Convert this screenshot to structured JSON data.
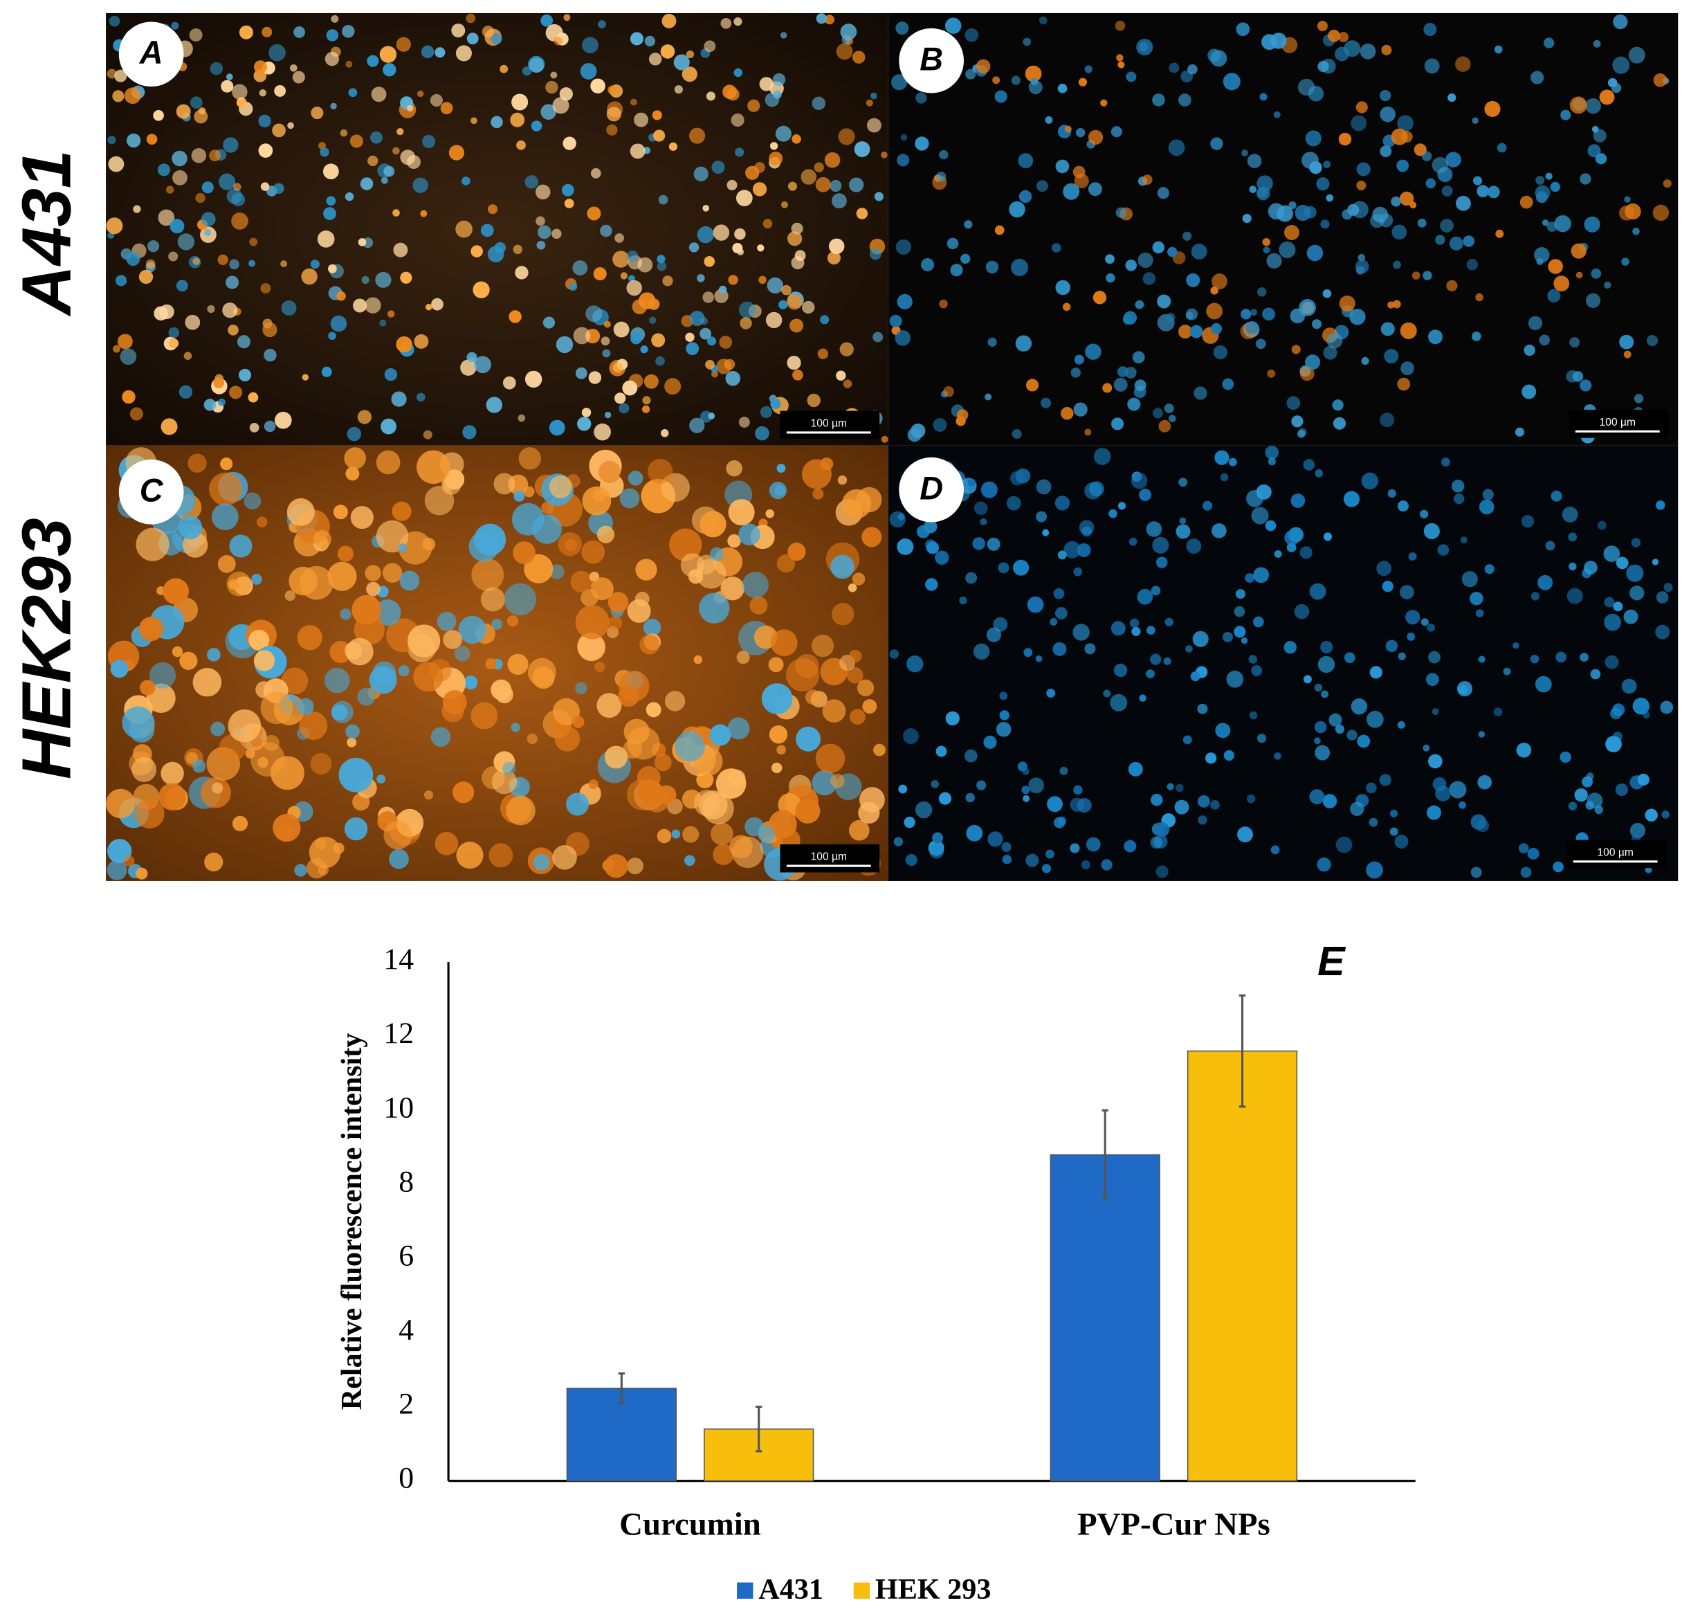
{
  "panels": {
    "row_labels": [
      "A431",
      "HEK293"
    ],
    "letters": [
      "A",
      "B",
      "C",
      "D"
    ],
    "scale_bar": "100 µm"
  },
  "chart_data": {
    "type": "bar",
    "panel_label": "E",
    "ylabel": "Relative fluorescence intensity",
    "categories": [
      "Curcumin",
      "PVP-Cur NPs"
    ],
    "series": [
      {
        "name": "A431",
        "color": "#1f6ac6",
        "values": [
          2.5,
          8.8
        ],
        "errors": [
          0.4,
          1.2
        ]
      },
      {
        "name": "HEK 293",
        "color": "#f7be0c",
        "values": [
          1.4,
          11.6
        ],
        "errors": [
          0.6,
          1.5
        ]
      }
    ],
    "ylim": [
      0,
      14
    ],
    "yticks": [
      0,
      2,
      4,
      6,
      8,
      10,
      12,
      14
    ]
  }
}
